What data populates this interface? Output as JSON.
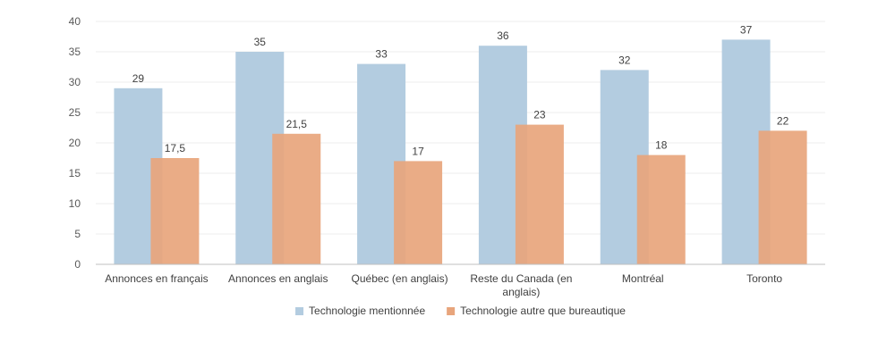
{
  "chart_data": {
    "type": "bar",
    "title": "",
    "xlabel": "",
    "ylabel": "",
    "ylim": [
      0,
      40
    ],
    "yticks": [
      0,
      5,
      10,
      15,
      20,
      25,
      30,
      35,
      40
    ],
    "grid": true,
    "legend": "bottom",
    "categories": [
      [
        "Annonces  en français"
      ],
      [
        "Annonces  en anglais"
      ],
      [
        "Québec  (en anglais)"
      ],
      [
        "Reste du  Canada (en",
        "anglais)"
      ],
      [
        "Montréal"
      ],
      [
        "Toronto"
      ]
    ],
    "series": [
      {
        "name": "Technologie mentionnée",
        "color": "#b3cce0",
        "values": [
          29,
          35,
          33,
          36,
          32,
          37
        ],
        "labels": [
          "29",
          "35",
          "33",
          "36",
          "32",
          "37"
        ]
      },
      {
        "name": "Technologie autre que bureautique",
        "color": "#e8a57c",
        "values": [
          17.5,
          21.5,
          17,
          23,
          18,
          22
        ],
        "labels": [
          "17,5",
          "21,5",
          "17",
          "23",
          "18",
          "22"
        ]
      }
    ]
  }
}
